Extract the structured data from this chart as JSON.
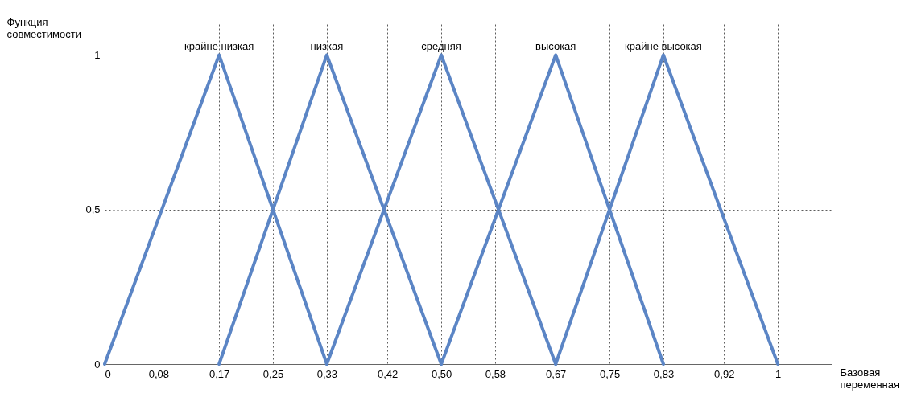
{
  "chart_data": {
    "type": "line",
    "xlabel": "Базовая переменная",
    "ylabel": "Функция совместимости",
    "xlim": [
      0,
      1.08
    ],
    "ylim": [
      0,
      1.1
    ],
    "xticks": [
      0,
      {
        "value": 0.08,
        "label": "0,08"
      },
      {
        "value": 0.17,
        "label": "0,17"
      },
      {
        "value": 0.25,
        "label": "0,25"
      },
      {
        "value": 0.33,
        "label": "0,33"
      },
      {
        "value": 0.42,
        "label": "0,42"
      },
      {
        "value": 0.5,
        "label": "0,50"
      },
      {
        "value": 0.58,
        "label": "0,58"
      },
      {
        "value": 0.67,
        "label": "0,67"
      },
      {
        "value": 0.75,
        "label": "0,75"
      },
      {
        "value": 0.83,
        "label": "0,83"
      },
      {
        "value": 0.92,
        "label": "0,92"
      },
      1
    ],
    "yticks": [
      0,
      {
        "value": 0.5,
        "label": "0,5"
      },
      1
    ],
    "grid": true,
    "line_style": "solid",
    "marker": "none",
    "legend": false,
    "series": [
      {
        "name": "крайне низкая",
        "color": "#5b85c5",
        "x": [
          0,
          0.17,
          0.33
        ],
        "values": [
          0,
          1,
          0
        ]
      },
      {
        "name": "низкая",
        "color": "#5b85c5",
        "x": [
          0.17,
          0.33,
          0.5
        ],
        "values": [
          0,
          1,
          0
        ]
      },
      {
        "name": "средняя",
        "color": "#5b85c5",
        "x": [
          0.33,
          0.5,
          0.67
        ],
        "values": [
          0,
          1,
          0
        ]
      },
      {
        "name": "высокая",
        "color": "#5b85c5",
        "x": [
          0.5,
          0.67,
          0.83
        ],
        "values": [
          0,
          1,
          0
        ]
      },
      {
        "name": "крайне высокая",
        "color": "#5b85c5",
        "x": [
          0.67,
          0.83,
          1
        ],
        "values": [
          0,
          1,
          0
        ]
      }
    ]
  }
}
